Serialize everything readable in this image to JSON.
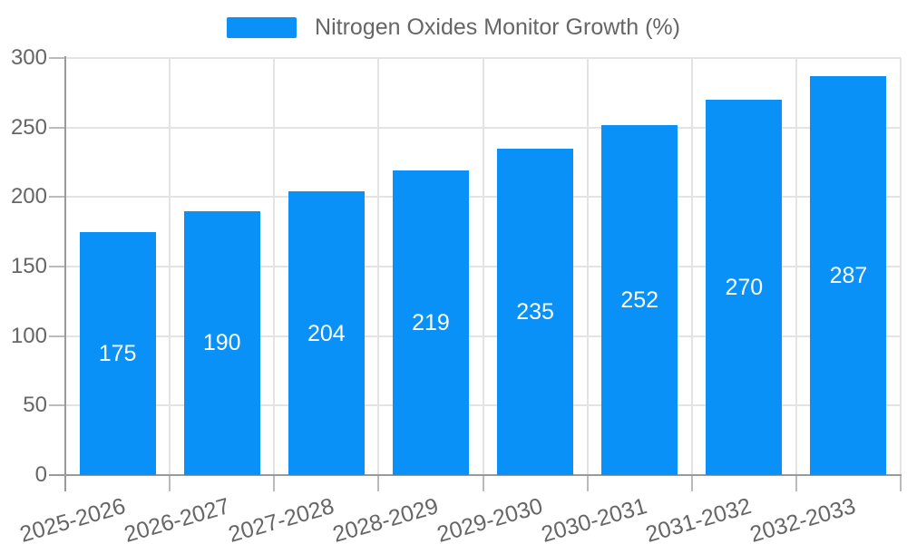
{
  "chart_data": {
    "type": "bar",
    "title": "Nitrogen Oxides Monitor Growth (%)",
    "legend": {
      "label": "Nitrogen Oxides Monitor Growth (%)",
      "position": "top"
    },
    "categories": [
      "2025-2026",
      "2026-2027",
      "2027-2028",
      "2028-2029",
      "2029-2030",
      "2030-2031",
      "2031-2032",
      "2032-2033"
    ],
    "values": [
      175,
      190,
      204,
      219,
      235,
      252,
      270,
      287
    ],
    "xlabel": "",
    "ylabel": "",
    "ylim": [
      0,
      300
    ],
    "yticks": [
      0,
      50,
      100,
      150,
      200,
      250,
      300
    ],
    "grid": true,
    "bar_value_labels_visible": true,
    "x_label_rotation_deg": -16,
    "colors": {
      "bar": "#0991F8",
      "axis_line": "#9A9A9A",
      "grid_line": "#E3E3E3",
      "tick_mark": "#BBBBBB",
      "text": "#666666",
      "bar_label": "#FFFFFF",
      "background": "#FFFFFF"
    }
  }
}
